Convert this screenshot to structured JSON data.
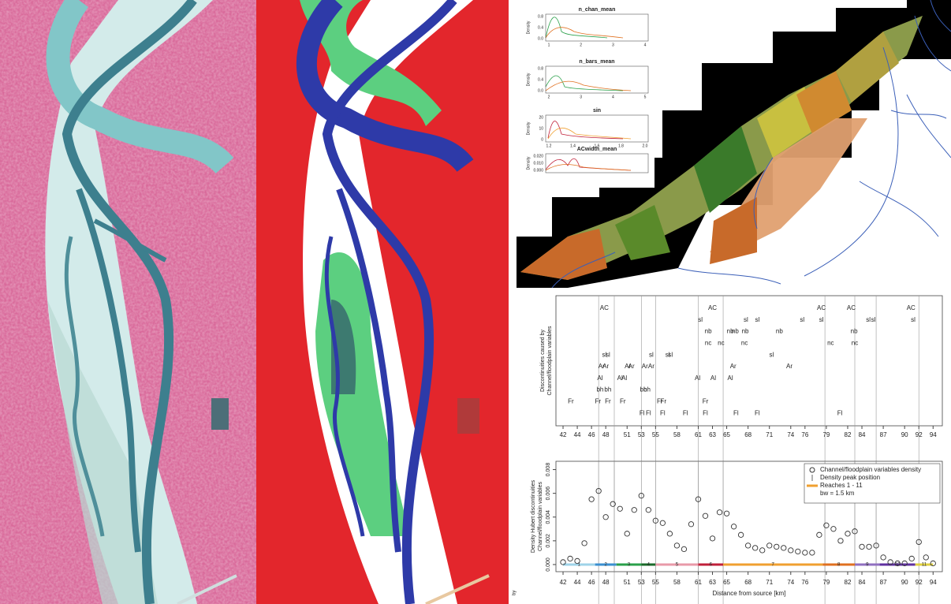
{
  "density_insets": [
    {
      "title": "n_chan_mean",
      "ylabel": "Density",
      "xticks": [
        "1",
        "2",
        "3",
        "4"
      ],
      "yticks": [
        "0.0",
        "0.4",
        "0.8"
      ]
    },
    {
      "title": "n_bars_mean",
      "ylabel": "Density",
      "xticks": [
        "2",
        "3",
        "4",
        "5"
      ],
      "yticks": [
        "0.0",
        "0.4",
        "0.8"
      ]
    },
    {
      "title": "sin",
      "ylabel": "Density",
      "xticks": [
        "1.2",
        "1.4",
        "1.6",
        "1.8",
        "2.0"
      ],
      "yticks": [
        "0",
        "10",
        "20"
      ]
    },
    {
      "title": "ACwidth_mean",
      "ylabel": "Density",
      "xticks": [],
      "yticks": [
        "0.000",
        "0.010",
        "0.020"
      ]
    }
  ],
  "chart_data": [
    {
      "type": "text_scatter",
      "ylabel": [
        "Discontinuities caused by",
        "Channel/floodplain variables"
      ],
      "xlim": [
        41,
        95.3
      ],
      "xticks": [
        42,
        44,
        46,
        48,
        51,
        53,
        55,
        58,
        61,
        63,
        65,
        68,
        71,
        74,
        76,
        79,
        82,
        84,
        87,
        90,
        92,
        94
      ],
      "rows": [
        {
          "label": "AC",
          "x": [
            47.8,
            63.0,
            78.3,
            82.5,
            90.9
          ]
        },
        {
          "label": "sl",
          "x": [
            61.3,
            67.7,
            69.3,
            75.6,
            78.3,
            84.9,
            85.6,
            91.2
          ]
        },
        {
          "label": "nb",
          "x": [
            62.4,
            65.5,
            66.2,
            67.6,
            72.4,
            82.9
          ]
        },
        {
          "label": "nc",
          "x": [
            62.4,
            64.2,
            67.5,
            79.6,
            83.0
          ]
        },
        {
          "label": "sl",
          "x": [
            47.8,
            48.3,
            54.4,
            56.7,
            57.1,
            71.3
          ]
        },
        {
          "label": "Ar",
          "x": [
            47.4,
            48.0,
            51.1,
            51.6,
            53.5,
            54.4,
            65.9,
            73.8
          ]
        },
        {
          "label": "Al",
          "x": [
            47.2,
            50.0,
            50.6,
            60.9,
            63.1,
            65.5
          ]
        },
        {
          "label": "bh",
          "x": [
            47.2,
            48.3,
            53.3,
            53.8
          ]
        },
        {
          "label": "Fr",
          "x": [
            43.1,
            46.9,
            48.3,
            50.4,
            55.6,
            56.1,
            62.0
          ]
        },
        {
          "label": "Fl",
          "x": [
            53.1,
            54.0,
            56.0,
            59.2,
            62.0,
            66.3,
            69.3,
            80.9
          ]
        }
      ]
    },
    {
      "type": "scatter",
      "ylabel": [
        "Density Hubert discontinuities",
        "Channel/floodplain variables"
      ],
      "xlabel": "Distance from source [km]",
      "xlim": [
        41,
        95.3
      ],
      "ylim": [
        -0.0006,
        0.0087
      ],
      "xticks": [
        42,
        44,
        46,
        48,
        51,
        53,
        55,
        58,
        61,
        63,
        65,
        68,
        71,
        74,
        76,
        79,
        82,
        84,
        87,
        90,
        92,
        94
      ],
      "yticks": [
        {
          "value": 0,
          "label": "0.000"
        },
        {
          "value": 0.002,
          "label": "0.002"
        },
        {
          "value": 0.004,
          "label": "0.004"
        },
        {
          "value": 0.006,
          "label": "0.006"
        },
        {
          "value": 0.008,
          "label": "0.008"
        }
      ],
      "x": [
        42,
        43,
        44,
        45,
        46,
        47,
        48,
        49,
        50,
        51,
        52,
        53,
        54,
        55,
        56,
        57,
        58,
        59,
        60,
        61,
        62,
        63,
        64,
        65,
        66,
        67,
        68,
        69,
        70,
        71,
        72,
        73,
        74,
        75,
        76,
        77,
        78,
        79,
        80,
        81,
        82,
        83,
        84,
        85,
        86,
        87,
        88,
        89,
        90,
        91,
        92,
        93,
        94
      ],
      "series": [
        {
          "name": "Channel/floodplain variables density",
          "color": "#333333",
          "values": [
            0.0002,
            0.0005,
            0.0003,
            0.0018,
            0.0055,
            0.0062,
            0.004,
            0.0051,
            0.0047,
            0.0026,
            0.0046,
            0.0058,
            0.0046,
            0.0037,
            0.0035,
            0.0026,
            0.0016,
            0.0013,
            0.0034,
            0.0055,
            0.0041,
            0.0022,
            0.0044,
            0.0043,
            0.0032,
            0.0025,
            0.0016,
            0.0014,
            0.0012,
            0.0016,
            0.0015,
            0.0014,
            0.0012,
            0.0011,
            0.001,
            0.001,
            0.0025,
            0.0033,
            0.003,
            0.002,
            0.0026,
            0.0028,
            0.0015,
            0.0015,
            0.0016,
            0.0006,
            0.0002,
            0.0001,
            0.0001,
            0.0005,
            0.0019,
            0.0006,
            0.0001
          ]
        }
      ],
      "peaks_name": "Density peak position",
      "peaks": [
        47,
        49.2,
        53,
        55,
        61,
        64.5,
        78.8,
        83,
        86,
        92
      ],
      "reaches_name": "Reaches 1 - 11",
      "reaches_color": "#f0a030",
      "bandwidth_note": "bw =  1.5  km",
      "reaches": [
        {
          "label": "1",
          "start": 42,
          "end": 46.5,
          "color": "#9fd3e8"
        },
        {
          "label": "2",
          "start": 46.5,
          "end": 49.5,
          "color": "#3a8fd0"
        },
        {
          "label": "3",
          "start": 49.5,
          "end": 53,
          "color": "#2aa04a"
        },
        {
          "label": "4",
          "start": 53,
          "end": 55,
          "color": "#1a6a2a"
        },
        {
          "label": "5",
          "start": 55,
          "end": 61,
          "color": "#e89aa8"
        },
        {
          "label": "6",
          "start": 61,
          "end": 64.5,
          "color": "#c0203a"
        },
        {
          "label": "7",
          "start": 64.5,
          "end": 78.5,
          "color": "#f0a030"
        },
        {
          "label": "8",
          "start": 78.5,
          "end": 83,
          "color": "#e07020"
        },
        {
          "label": "9",
          "start": 83,
          "end": 86.5,
          "color": "#9070c0"
        },
        {
          "label": "10",
          "start": 86.5,
          "end": 91.5,
          "color": "#6030a0"
        },
        {
          "label": "11",
          "start": 91.5,
          "end": 94,
          "color": "#e0d040"
        }
      ],
      "legend": "top-right"
    }
  ],
  "footer_fragment": "by"
}
